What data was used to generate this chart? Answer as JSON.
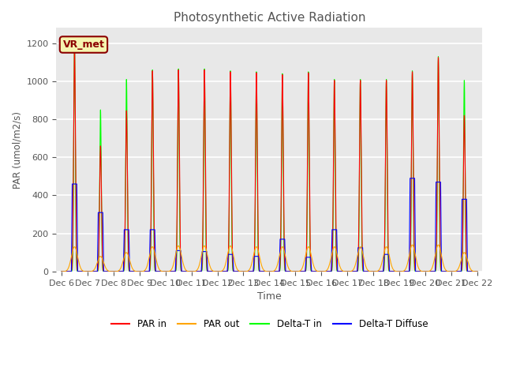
{
  "title": "Photosynthetic Active Radiation",
  "ylabel": "PAR (umol/m2/s)",
  "xlabel": "Time",
  "annotation_text": "VR_met",
  "legend_labels": [
    "PAR in",
    "PAR out",
    "Delta-T in",
    "Delta-T Diffuse"
  ],
  "legend_colors": [
    "red",
    "orange",
    "lime",
    "blue"
  ],
  "ylim": [
    0,
    1280
  ],
  "yticks": [
    0,
    200,
    400,
    600,
    800,
    1000,
    1200
  ],
  "background_color": "#e8e8e8",
  "title_color": "#555555",
  "tick_color": "#555555",
  "grid_color": "white",
  "par_in_peaks": [
    1185,
    660,
    845,
    1055,
    1060,
    1060,
    1050,
    1045,
    1035,
    1045,
    1005,
    1005,
    1005,
    1050,
    1125,
    820
  ],
  "par_out_peaks": [
    130,
    80,
    100,
    130,
    135,
    135,
    135,
    130,
    130,
    130,
    130,
    130,
    130,
    140,
    140,
    100
  ],
  "delta_t_in_peaks": [
    1200,
    850,
    1010,
    1060,
    1065,
    1065,
    1055,
    1050,
    1040,
    1050,
    1010,
    1010,
    1010,
    1055,
    1130,
    1005
  ],
  "delta_t_diffuse_peaks": [
    460,
    310,
    220,
    220,
    110,
    105,
    90,
    80,
    170,
    75,
    220,
    125,
    90,
    490,
    470,
    380
  ],
  "par_in_sigma": 0.035,
  "par_out_sigma": 0.12,
  "delta_t_in_sigma": 0.03,
  "delta_t_diffuse_sigma": 0.1,
  "n_days": 16,
  "pts_per_day": 500
}
